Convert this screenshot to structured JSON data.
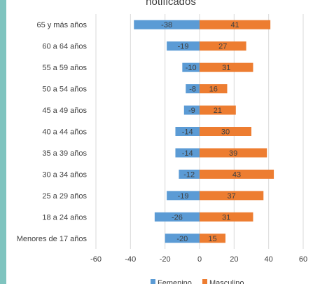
{
  "chart_data": {
    "type": "bar",
    "orientation": "horizontal",
    "title": "notificados",
    "categories": [
      "65 y más años",
      "60 a 64 años",
      "55 a 59 años",
      "50 a 54 años",
      "45 a 49 años",
      "40 a 44 años",
      "35 a 39 años",
      "30 a 34 años",
      "25 a 29 años",
      "18 a 24 años",
      "Menores de 17 años"
    ],
    "series": [
      {
        "name": "Femenino",
        "color": "#5b9bd5",
        "values": [
          -38,
          -19,
          -10,
          -8,
          -9,
          -14,
          -14,
          -12,
          -19,
          -26,
          -20
        ]
      },
      {
        "name": "Masculino",
        "color": "#ed7d31",
        "values": [
          41,
          27,
          31,
          16,
          21,
          30,
          39,
          43,
          37,
          31,
          15
        ]
      }
    ],
    "xlim": [
      -60,
      60
    ],
    "xticks": [
      "-60",
      "-40",
      "-20",
      "0",
      "20",
      "40",
      "60"
    ],
    "grid": true,
    "legend_position": "bottom"
  },
  "colors": {
    "accent_strip": "#7fc4bf",
    "grid": "#d9d9d9"
  }
}
